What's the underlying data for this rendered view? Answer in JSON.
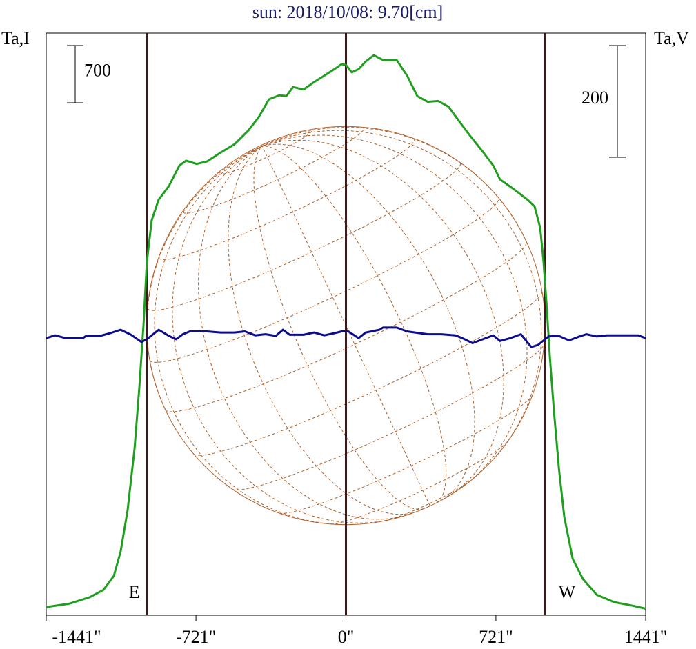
{
  "chart_data": {
    "type": "line",
    "title": "sun: 2018/10/08: 9.70[cm]",
    "ylabel": "Ta,I",
    "y2label": "Ta,V",
    "xlim": [
      -1441,
      1441
    ],
    "xticks": [
      {
        "value": -1441,
        "label": "-1441\""
      },
      {
        "value": -721,
        "label": "-721\""
      },
      {
        "value": 0,
        "label": "0\""
      },
      {
        "value": 721,
        "label": "721\""
      },
      {
        "value": 1441,
        "label": "1441\""
      }
    ],
    "ylim": [
      0,
      7120
    ],
    "y2lim": [
      -501,
      541
    ],
    "scale_bar": 700,
    "scale_bar2": 200,
    "markers": [
      {
        "x": -958,
        "label": "E"
      },
      {
        "x": 0
      },
      {
        "x": 957,
        "label": "W"
      }
    ],
    "series": [
      {
        "name": "Ta,I",
        "color": "#1f9e1f",
        "x": [
          -1441,
          -1332,
          -1232,
          -1166,
          -1116,
          -1083,
          -1050,
          -1016,
          -993,
          -973,
          -957,
          -934,
          -901,
          -851,
          -801,
          -768,
          -718,
          -668,
          -602,
          -536,
          -469,
          -420,
          -370,
          -320,
          -287,
          -254,
          -204,
          -154,
          -104,
          -55,
          -21,
          0,
          28,
          61,
          94,
          134,
          178,
          244,
          294,
          343,
          393,
          443,
          493,
          542,
          592,
          658,
          708,
          741,
          808,
          874,
          907,
          934,
          950,
          964,
          981,
          1001,
          1024,
          1050,
          1090,
          1140,
          1206,
          1289,
          1372,
          1441
        ],
        "values": [
          100,
          140,
          220,
          310,
          480,
          780,
          1280,
          2040,
          2800,
          3560,
          4320,
          4830,
          5080,
          5250,
          5500,
          5560,
          5520,
          5550,
          5660,
          5760,
          5930,
          6090,
          6310,
          6360,
          6350,
          6460,
          6430,
          6520,
          6600,
          6680,
          6740,
          6730,
          6640,
          6680,
          6770,
          6850,
          6790,
          6790,
          6600,
          6350,
          6280,
          6290,
          6220,
          6050,
          5880,
          5670,
          5500,
          5330,
          5210,
          5080,
          5000,
          4740,
          4320,
          3820,
          3140,
          2470,
          1790,
          1200,
          690,
          440,
          250,
          160,
          120,
          80
        ]
      },
      {
        "name": "Ta,V",
        "color": "#0c0c8c",
        "axis": "y2",
        "x": [
          -1441,
          -1398,
          -1348,
          -1265,
          -1249,
          -1182,
          -1133,
          -1083,
          -1033,
          -983,
          -950,
          -900,
          -851,
          -817,
          -784,
          -751,
          -668,
          -602,
          -536,
          -486,
          -436,
          -386,
          -337,
          -303,
          -270,
          -204,
          -154,
          -104,
          -55,
          -21,
          12,
          61,
          95,
          161,
          178,
          244,
          294,
          393,
          459,
          526,
          559,
          609,
          658,
          708,
          741,
          791,
          841,
          891,
          924,
          974,
          1023,
          1073,
          1123,
          1156,
          1206,
          1255,
          1338,
          1405,
          1441
        ],
        "values": [
          -5,
          0,
          -5,
          -5,
          -1,
          -1,
          4,
          10,
          1,
          -12,
          -5,
          10,
          -1,
          -7,
          2,
          7,
          7,
          5,
          5,
          7,
          0,
          2,
          -1,
          10,
          1,
          1,
          5,
          0,
          4,
          7,
          7,
          -5,
          5,
          10,
          14,
          14,
          7,
          2,
          2,
          0,
          -5,
          -14,
          -7,
          0,
          -10,
          -5,
          2,
          -21,
          -17,
          -2,
          -1,
          -9,
          -2,
          2,
          -2,
          0,
          0,
          0,
          -5
        ]
      }
    ]
  }
}
